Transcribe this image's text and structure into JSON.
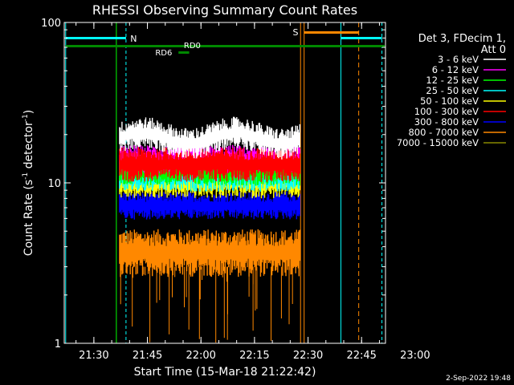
{
  "chart_data": {
    "type": "line",
    "title": "RHESSI Observing Summary Count Rates",
    "xlabel": "Start Time (15-Mar-18 21:22:42)",
    "ylabel_main": "Count Rate (s",
    "ylabel_sup1": "-1",
    "ylabel_mid": " detector",
    "ylabel_sup2": "-1",
    "ylabel_end": ")",
    "ylog": true,
    "ylim": [
      1,
      100
    ],
    "xlim_minutes": [
      -1,
      89
    ],
    "x_tick_labels": [
      "21:30",
      "21:45",
      "22:00",
      "22:15",
      "22:30",
      "22:45",
      "23:00"
    ],
    "x_tick_minutes": [
      7.3,
      22.3,
      37.3,
      52.3,
      67.3,
      82.3,
      97.3
    ],
    "y_tick_labels": [
      "1",
      "10",
      "100"
    ],
    "y_tick_values": [
      1,
      10,
      100
    ],
    "legend_header_line1": "Det 3, FDecim 1,",
    "legend_header_line2": "Att 0",
    "legend_position": "right",
    "data_window_minutes": [
      14.5,
      65.0
    ],
    "series": [
      {
        "name": "3 - 6 keV",
        "color": "#ffffff",
        "base": 19,
        "spread": 0.2
      },
      {
        "name": "6 - 12 keV",
        "color": "#ff00ff",
        "base": 14,
        "spread": 0.18
      },
      {
        "name": "12 - 25 keV",
        "color": "#00ff00",
        "base": 12,
        "spread": 0.2
      },
      {
        "name": "25 - 50 keV",
        "color": "#00ffff",
        "base": 11,
        "spread": 0.2
      },
      {
        "name": "50 - 100 keV",
        "color": "#ffff00",
        "base": 10,
        "spread": 0.2
      },
      {
        "name": "100 - 300 keV",
        "color": "#ff0000",
        "base": 13,
        "spread": 0.22
      },
      {
        "name": "300 - 800 keV",
        "color": "#0000ff",
        "base": 7.2,
        "spread": 0.18
      },
      {
        "name": "800 - 7000 keV",
        "color": "#ff8800",
        "base": 3.7,
        "spread": 0.3
      },
      {
        "name": "7000 - 15000 keV",
        "color": "#888800",
        "base": 0,
        "spread": 0
      }
    ],
    "flags": {
      "N_label": "N",
      "S_label": "S",
      "RD0_label": "RD0",
      "RD6_label": "RD6"
    }
  },
  "footer_date": "2-Sep-2022 19:48"
}
